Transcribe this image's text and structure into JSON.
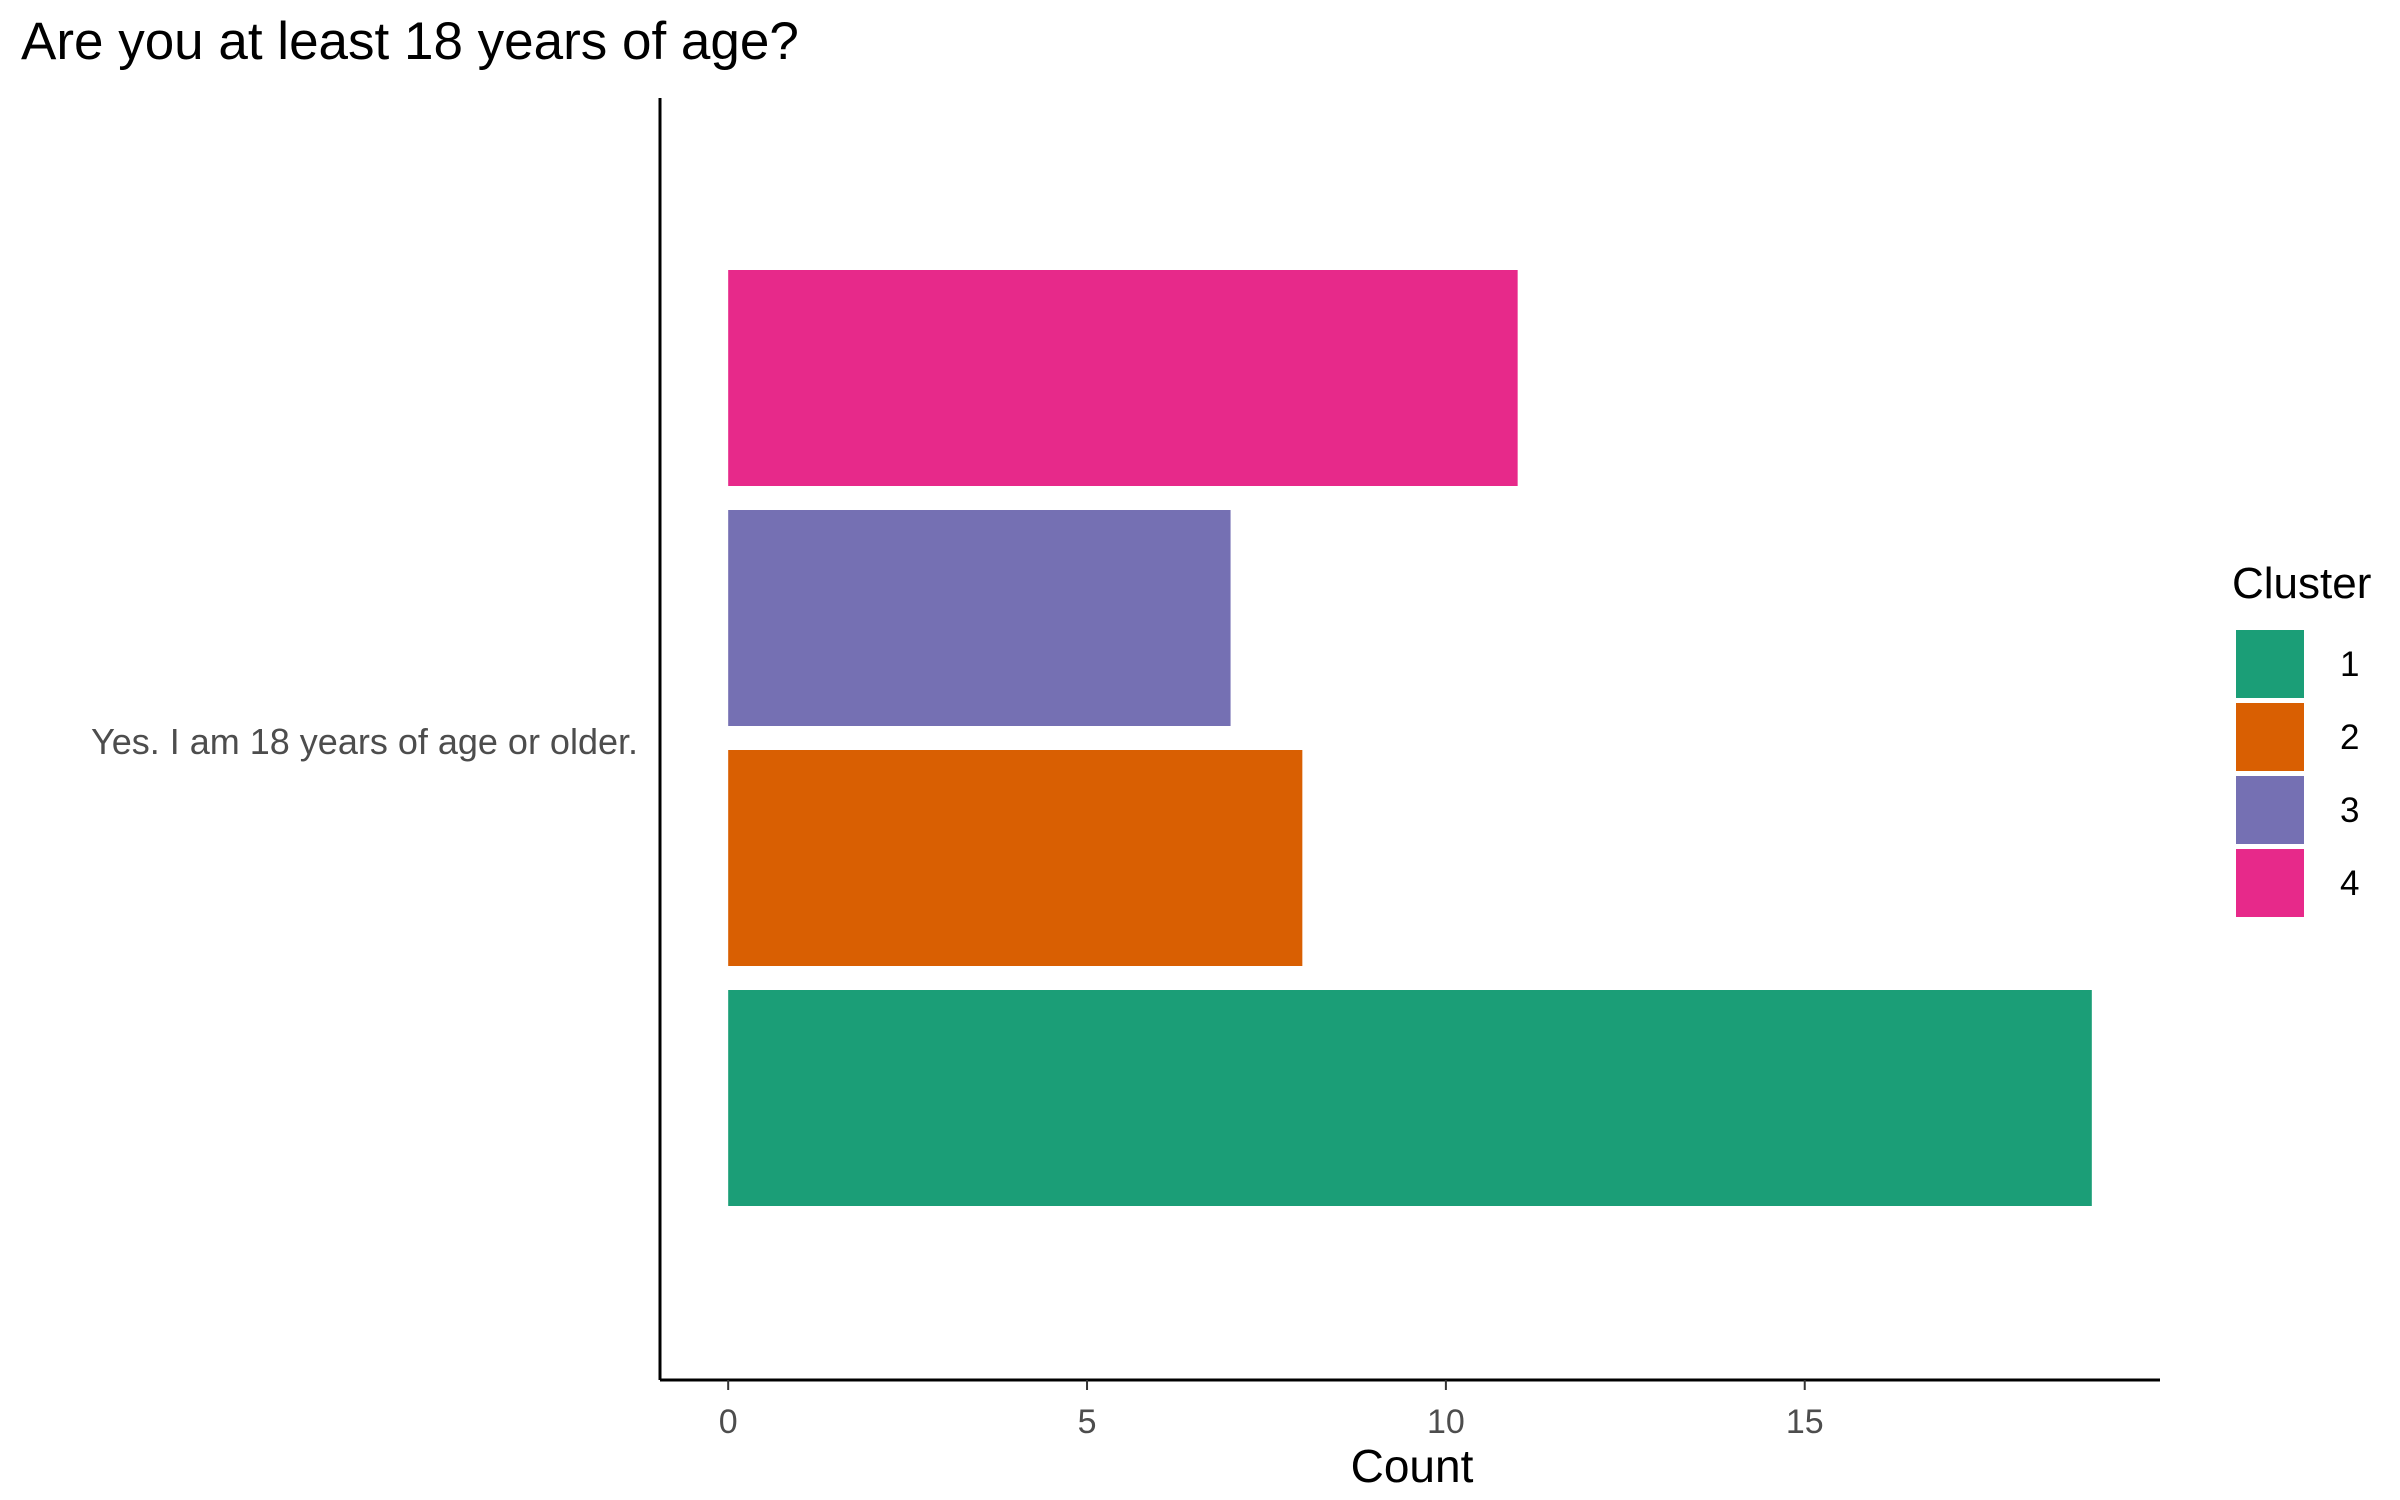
{
  "chart_data": {
    "type": "bar",
    "orientation": "horizontal",
    "title": "Are you at least 18 years of age?",
    "categories": [
      "Yes. I am 18 years of age or older."
    ],
    "series": [
      {
        "name": "1",
        "values": [
          19
        ],
        "color": "#1b9e77"
      },
      {
        "name": "2",
        "values": [
          8
        ],
        "color": "#d95f02"
      },
      {
        "name": "3",
        "values": [
          7
        ],
        "color": "#7570b3"
      },
      {
        "name": "4",
        "values": [
          11
        ],
        "color": "#e7298a"
      }
    ],
    "xlabel": "Count",
    "ylabel": "",
    "xlim": [
      -0.95,
      19.95
    ],
    "x_ticks": [
      "0",
      "5",
      "10",
      "15"
    ],
    "legend_title": "Cluster",
    "legend_position": "right",
    "grid": false
  }
}
